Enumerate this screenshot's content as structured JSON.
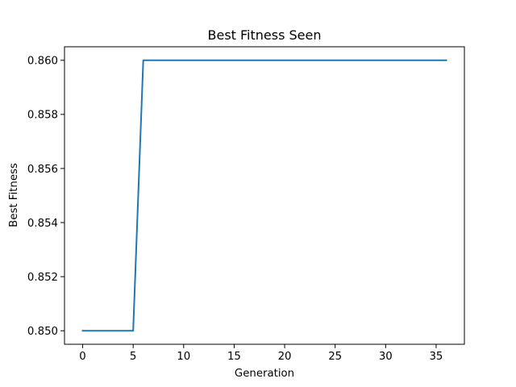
{
  "chart_data": {
    "type": "line",
    "title": "Best Fitness Seen",
    "xlabel": "Generation",
    "ylabel": "Best Fitness",
    "xlim": [
      -1.8,
      37.8
    ],
    "ylim": [
      0.8495,
      0.8605
    ],
    "xticks": [
      0,
      5,
      10,
      15,
      20,
      25,
      30,
      35
    ],
    "xtick_labels": [
      "0",
      "5",
      "10",
      "15",
      "20",
      "25",
      "30",
      "35"
    ],
    "yticks": [
      0.85,
      0.852,
      0.854,
      0.856,
      0.858,
      0.86
    ],
    "ytick_labels": [
      "0.850",
      "0.852",
      "0.854",
      "0.856",
      "0.858",
      "0.860"
    ],
    "grid": false,
    "series": [
      {
        "color": "#1f77b4",
        "x": [
          0,
          1,
          2,
          3,
          4,
          5,
          6,
          7,
          8,
          9,
          10,
          11,
          12,
          13,
          14,
          15,
          16,
          17,
          18,
          19,
          20,
          21,
          22,
          23,
          24,
          25,
          26,
          27,
          28,
          29,
          30,
          31,
          32,
          33,
          34,
          35,
          36
        ],
        "y": [
          0.85,
          0.85,
          0.85,
          0.85,
          0.85,
          0.85,
          0.86,
          0.86,
          0.86,
          0.86,
          0.86,
          0.86,
          0.86,
          0.86,
          0.86,
          0.86,
          0.86,
          0.86,
          0.86,
          0.86,
          0.86,
          0.86,
          0.86,
          0.86,
          0.86,
          0.86,
          0.86,
          0.86,
          0.86,
          0.86,
          0.86,
          0.86,
          0.86,
          0.86,
          0.86,
          0.86,
          0.86
        ]
      }
    ]
  }
}
